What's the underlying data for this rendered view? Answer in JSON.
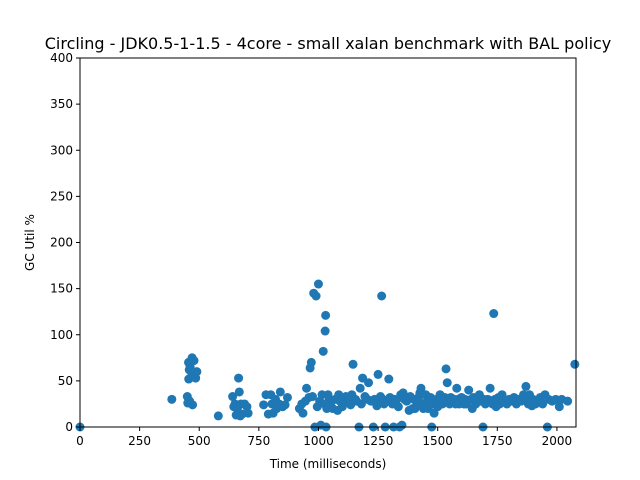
{
  "chart_data": {
    "type": "scatter",
    "title": "Circling - JDK0.5-1-1.5 - 4core -  small xalan benchmark with BAL policy",
    "xlabel": "Time (milliseconds)",
    "ylabel": "GC Util %",
    "xlim": [
      0,
      2080
    ],
    "ylim": [
      0,
      400
    ],
    "xticks": [
      0,
      250,
      500,
      750,
      1000,
      1250,
      1500,
      1750,
      2000
    ],
    "yticks": [
      0,
      50,
      100,
      150,
      200,
      250,
      300,
      350,
      400
    ],
    "grid": false,
    "marker_color": "#1f77b4",
    "series": [
      {
        "points": [
          [
            0,
            0
          ],
          [
            385,
            30
          ],
          [
            450,
            33
          ],
          [
            452,
            26
          ],
          [
            455,
            70
          ],
          [
            456,
            52
          ],
          [
            458,
            62
          ],
          [
            460,
            28
          ],
          [
            462,
            65
          ],
          [
            466,
            72
          ],
          [
            468,
            55
          ],
          [
            470,
            75
          ],
          [
            472,
            24
          ],
          [
            475,
            58
          ],
          [
            478,
            72
          ],
          [
            485,
            53
          ],
          [
            490,
            60
          ],
          [
            580,
            12
          ],
          [
            640,
            33
          ],
          [
            645,
            22
          ],
          [
            650,
            25
          ],
          [
            655,
            13
          ],
          [
            660,
            20
          ],
          [
            665,
            53
          ],
          [
            668,
            38
          ],
          [
            672,
            12
          ],
          [
            675,
            25
          ],
          [
            680,
            14
          ],
          [
            690,
            25
          ],
          [
            700,
            22
          ],
          [
            705,
            15
          ],
          [
            770,
            24
          ],
          [
            780,
            35
          ],
          [
            790,
            14
          ],
          [
            800,
            35
          ],
          [
            805,
            25
          ],
          [
            810,
            15
          ],
          [
            820,
            30
          ],
          [
            825,
            20
          ],
          [
            835,
            25
          ],
          [
            840,
            38
          ],
          [
            850,
            22
          ],
          [
            860,
            24
          ],
          [
            870,
            32
          ],
          [
            920,
            20
          ],
          [
            930,
            25
          ],
          [
            935,
            15
          ],
          [
            945,
            28
          ],
          [
            950,
            42
          ],
          [
            960,
            32
          ],
          [
            965,
            64
          ],
          [
            970,
            70
          ],
          [
            975,
            33
          ],
          [
            980,
            145
          ],
          [
            985,
            0
          ],
          [
            990,
            142
          ],
          [
            995,
            22
          ],
          [
            1000,
            155
          ],
          [
            1005,
            28
          ],
          [
            1010,
            2
          ],
          [
            1015,
            35
          ],
          [
            1020,
            82
          ],
          [
            1025,
            25
          ],
          [
            1028,
            104
          ],
          [
            1030,
            121
          ],
          [
            1032,
            0
          ],
          [
            1035,
            20
          ],
          [
            1040,
            35
          ],
          [
            1045,
            30
          ],
          [
            1050,
            25
          ],
          [
            1060,
            20
          ],
          [
            1070,
            30
          ],
          [
            1080,
            18
          ],
          [
            1085,
            35
          ],
          [
            1090,
            28
          ],
          [
            1100,
            22
          ],
          [
            1105,
            30
          ],
          [
            1115,
            33
          ],
          [
            1125,
            28
          ],
          [
            1135,
            24
          ],
          [
            1140,
            35
          ],
          [
            1145,
            68
          ],
          [
            1155,
            30
          ],
          [
            1160,
            28
          ],
          [
            1170,
            0
          ],
          [
            1175,
            42
          ],
          [
            1180,
            25
          ],
          [
            1185,
            53
          ],
          [
            1195,
            33
          ],
          [
            1205,
            30
          ],
          [
            1210,
            48
          ],
          [
            1220,
            28
          ],
          [
            1230,
            0
          ],
          [
            1235,
            30
          ],
          [
            1245,
            23
          ],
          [
            1250,
            57
          ],
          [
            1255,
            27
          ],
          [
            1260,
            33
          ],
          [
            1265,
            142
          ],
          [
            1270,
            30
          ],
          [
            1275,
            25
          ],
          [
            1280,
            0
          ],
          [
            1290,
            28
          ],
          [
            1295,
            52
          ],
          [
            1300,
            32
          ],
          [
            1305,
            30
          ],
          [
            1310,
            25
          ],
          [
            1315,
            0
          ],
          [
            1320,
            30
          ],
          [
            1325,
            28
          ],
          [
            1335,
            22
          ],
          [
            1340,
            0
          ],
          [
            1345,
            35
          ],
          [
            1350,
            2
          ],
          [
            1355,
            37
          ],
          [
            1360,
            30
          ],
          [
            1370,
            28
          ],
          [
            1380,
            18
          ],
          [
            1385,
            33
          ],
          [
            1395,
            20
          ],
          [
            1400,
            30
          ],
          [
            1405,
            20
          ],
          [
            1410,
            28
          ],
          [
            1415,
            25
          ],
          [
            1420,
            32
          ],
          [
            1425,
            37
          ],
          [
            1430,
            42
          ],
          [
            1435,
            25
          ],
          [
            1440,
            20
          ],
          [
            1450,
            35
          ],
          [
            1455,
            28
          ],
          [
            1460,
            20
          ],
          [
            1470,
            32
          ],
          [
            1475,
            0
          ],
          [
            1480,
            25
          ],
          [
            1485,
            15
          ],
          [
            1490,
            28
          ],
          [
            1495,
            30
          ],
          [
            1500,
            22
          ],
          [
            1505,
            25
          ],
          [
            1510,
            35
          ],
          [
            1515,
            30
          ],
          [
            1520,
            25
          ],
          [
            1525,
            28
          ],
          [
            1530,
            32
          ],
          [
            1535,
            63
          ],
          [
            1540,
            48
          ],
          [
            1545,
            28
          ],
          [
            1550,
            25
          ],
          [
            1555,
            32
          ],
          [
            1560,
            28
          ],
          [
            1570,
            30
          ],
          [
            1575,
            25
          ],
          [
            1580,
            42
          ],
          [
            1585,
            30
          ],
          [
            1590,
            25
          ],
          [
            1600,
            32
          ],
          [
            1605,
            28
          ],
          [
            1610,
            25
          ],
          [
            1615,
            30
          ],
          [
            1620,
            25
          ],
          [
            1625,
            28
          ],
          [
            1630,
            40
          ],
          [
            1640,
            30
          ],
          [
            1645,
            20
          ],
          [
            1650,
            32
          ],
          [
            1660,
            25
          ],
          [
            1665,
            30
          ],
          [
            1675,
            35
          ],
          [
            1680,
            28
          ],
          [
            1690,
            0
          ],
          [
            1695,
            30
          ],
          [
            1700,
            25
          ],
          [
            1710,
            30
          ],
          [
            1720,
            42
          ],
          [
            1725,
            28
          ],
          [
            1730,
            25
          ],
          [
            1735,
            123
          ],
          [
            1740,
            30
          ],
          [
            1745,
            22
          ],
          [
            1750,
            28
          ],
          [
            1755,
            32
          ],
          [
            1760,
            25
          ],
          [
            1765,
            30
          ],
          [
            1770,
            35
          ],
          [
            1775,
            28
          ],
          [
            1790,
            25
          ],
          [
            1800,
            30
          ],
          [
            1810,
            28
          ],
          [
            1820,
            32
          ],
          [
            1830,
            25
          ],
          [
            1840,
            30
          ],
          [
            1850,
            28
          ],
          [
            1860,
            35
          ],
          [
            1870,
            44
          ],
          [
            1875,
            30
          ],
          [
            1880,
            25
          ],
          [
            1885,
            35
          ],
          [
            1890,
            28
          ],
          [
            1895,
            23
          ],
          [
            1900,
            30
          ],
          [
            1910,
            25
          ],
          [
            1920,
            28
          ],
          [
            1930,
            32
          ],
          [
            1940,
            25
          ],
          [
            1950,
            35
          ],
          [
            1960,
            0
          ],
          [
            1965,
            30
          ],
          [
            1980,
            28
          ],
          [
            1995,
            30
          ],
          [
            2010,
            22
          ],
          [
            2020,
            30
          ],
          [
            2045,
            28
          ],
          [
            2075,
            68
          ]
        ]
      }
    ]
  }
}
